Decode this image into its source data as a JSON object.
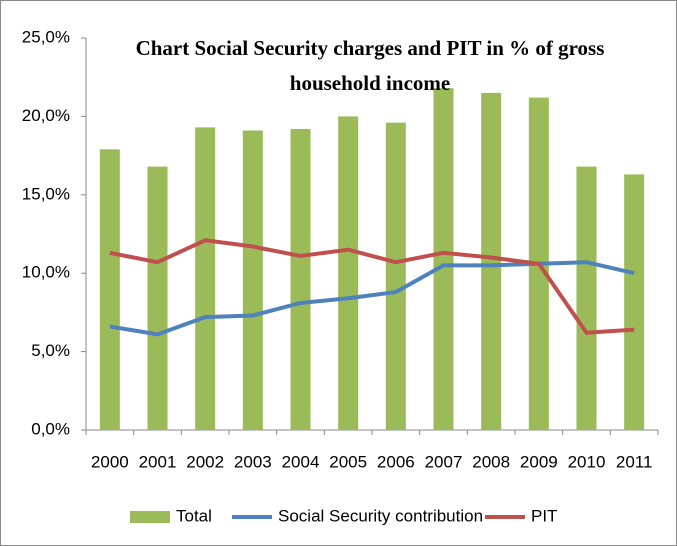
{
  "chart_data": {
    "type": "bar",
    "title_lines": [
      "Chart  Social Security charges and PIT in % of gross",
      "household income"
    ],
    "categories": [
      "2000",
      "2001",
      "2002",
      "2003",
      "2004",
      "2005",
      "2006",
      "2007",
      "2008",
      "2009",
      "2010",
      "2011"
    ],
    "series": [
      {
        "name": "Total",
        "type": "bar",
        "color": "#9bbb59",
        "values": [
          17.9,
          16.8,
          19.3,
          19.1,
          19.2,
          20.0,
          19.6,
          21.8,
          21.5,
          21.2,
          16.8,
          16.3
        ]
      },
      {
        "name": "Social Security contribution",
        "type": "line",
        "color": "#4f81bd",
        "values": [
          6.6,
          6.1,
          7.2,
          7.3,
          8.1,
          8.4,
          8.8,
          10.5,
          10.5,
          10.6,
          10.7,
          10.0
        ]
      },
      {
        "name": "PIT",
        "type": "line",
        "color": "#c0504d",
        "values": [
          11.3,
          10.7,
          12.1,
          11.7,
          11.1,
          11.5,
          10.7,
          11.3,
          11.0,
          10.6,
          6.2,
          6.4
        ]
      }
    ],
    "ylim": [
      0,
      25
    ],
    "yticks": [
      {
        "value": 0,
        "label": "0,0%"
      },
      {
        "value": 5,
        "label": "5,0%"
      },
      {
        "value": 10,
        "label": "10,0%"
      },
      {
        "value": 15,
        "label": "15,0%"
      },
      {
        "value": 20,
        "label": "20,0%"
      },
      {
        "value": 25,
        "label": "25,0%"
      }
    ],
    "grid": false,
    "legend": "bottom"
  }
}
